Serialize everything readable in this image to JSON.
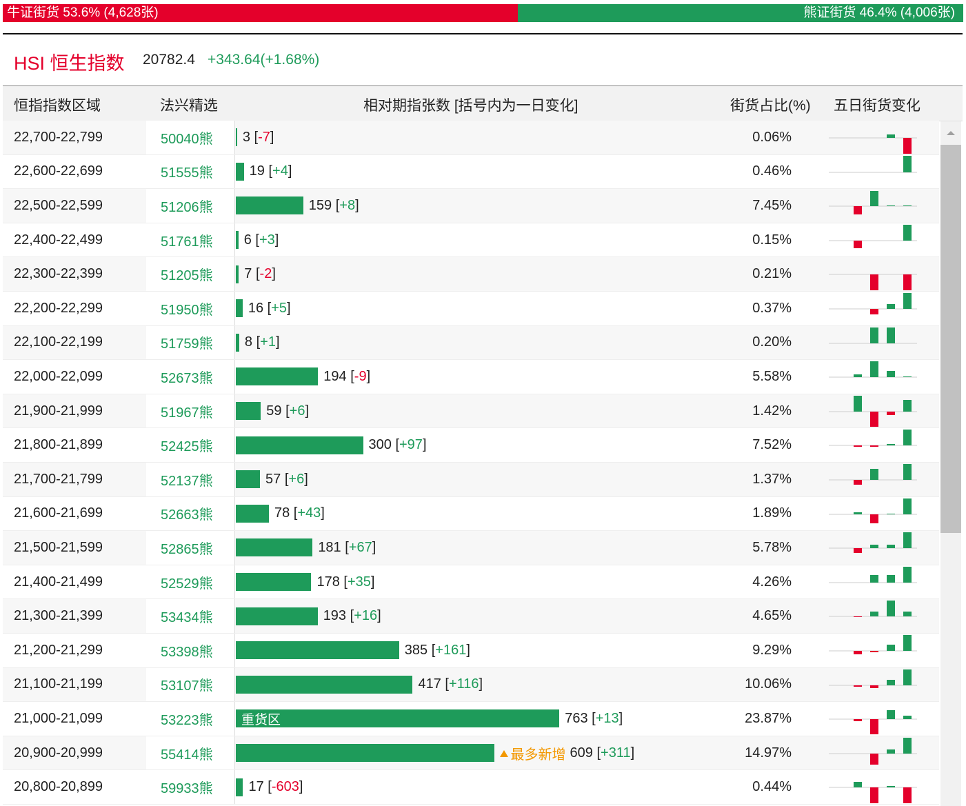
{
  "top_bar": {
    "bull": {
      "text": "牛证街货 53.6% (4,628张)",
      "share": 53.6
    },
    "bear": {
      "text": "熊证街货 46.4% (4,006张)",
      "share": 46.4
    }
  },
  "header": {
    "title": "HSI 恒生指数",
    "price": "20782.4",
    "change": "+343.64(+1.68%)"
  },
  "table": {
    "columns": [
      "恒指指数区域",
      "法兴精选",
      "相对期指张数 [括号内为一日变化]",
      "街货占比(%)",
      "五日街货变化"
    ],
    "rows": [
      {
        "range": "22,700-22,799",
        "code": "50040熊",
        "count": 3,
        "change": "-7",
        "share": "0.06%",
        "five_day": [
          0,
          0,
          5,
          -23
        ]
      },
      {
        "range": "22,600-22,699",
        "code": "51555熊",
        "count": 19,
        "change": "+4",
        "share": "0.46%",
        "five_day": [
          0,
          0,
          0,
          24
        ]
      },
      {
        "range": "22,500-22,599",
        "code": "51206熊",
        "count": 159,
        "change": "+8",
        "share": "7.45%",
        "five_day": [
          -12,
          22,
          1,
          1
        ]
      },
      {
        "range": "22,400-22,499",
        "code": "51761熊",
        "count": 6,
        "change": "+3",
        "share": "0.15%",
        "five_day": [
          -11,
          0,
          0,
          23
        ]
      },
      {
        "range": "22,300-22,399",
        "code": "51205熊",
        "count": 7,
        "change": "-2",
        "share": "0.21%",
        "five_day": [
          0,
          -23,
          0,
          -23
        ]
      },
      {
        "range": "22,200-22,299",
        "code": "51950熊",
        "count": 16,
        "change": "+5",
        "share": "0.37%",
        "five_day": [
          0,
          -8,
          7,
          23
        ]
      },
      {
        "range": "22,100-22,199",
        "code": "51759熊",
        "count": 8,
        "change": "+1",
        "share": "0.20%",
        "five_day": [
          0,
          23,
          23,
          0
        ]
      },
      {
        "range": "22,000-22,099",
        "code": "52673熊",
        "count": 194,
        "change": "-9",
        "share": "5.58%",
        "five_day": [
          4,
          23,
          9,
          1
        ]
      },
      {
        "range": "21,900-21,999",
        "code": "51967熊",
        "count": 59,
        "change": "+6",
        "share": "1.42%",
        "five_day": [
          23,
          -22,
          -5,
          17
        ]
      },
      {
        "range": "21,800-21,899",
        "code": "52425熊",
        "count": 300,
        "change": "+97",
        "share": "7.52%",
        "five_day": [
          -2,
          -2,
          2,
          23
        ]
      },
      {
        "range": "21,700-21,799",
        "code": "52137熊",
        "count": 57,
        "change": "+6",
        "share": "1.37%",
        "five_day": [
          -7,
          16,
          0,
          23
        ]
      },
      {
        "range": "21,600-21,699",
        "code": "52663熊",
        "count": 78,
        "change": "+43",
        "share": "1.89%",
        "five_day": [
          3,
          -13,
          1,
          23
        ]
      },
      {
        "range": "21,500-21,599",
        "code": "52865熊",
        "count": 181,
        "change": "+67",
        "share": "5.78%",
        "five_day": [
          -7,
          5,
          5,
          23
        ]
      },
      {
        "range": "21,400-21,499",
        "code": "52529熊",
        "count": 178,
        "change": "+35",
        "share": "4.26%",
        "five_day": [
          0,
          11,
          11,
          23
        ]
      },
      {
        "range": "21,300-21,399",
        "code": "53434熊",
        "count": 193,
        "change": "+16",
        "share": "4.65%",
        "five_day": [
          -1,
          7,
          23,
          7
        ]
      },
      {
        "range": "21,200-21,299",
        "code": "53398熊",
        "count": 385,
        "change": "+161",
        "share": "9.29%",
        "five_day": [
          -5,
          -2,
          9,
          23
        ]
      },
      {
        "range": "21,100-21,199",
        "code": "53107熊",
        "count": 417,
        "change": "+116",
        "share": "10.06%",
        "five_day": [
          -2,
          -4,
          8,
          23
        ]
      },
      {
        "range": "21,000-21,099",
        "code": "53223熊",
        "count": 763,
        "change": "+13",
        "share": "23.87%",
        "bar_tag": "重货区",
        "five_day": [
          -3,
          -22,
          13,
          5
        ]
      },
      {
        "range": "20,900-20,999",
        "code": "55414熊",
        "count": 609,
        "change": "+311",
        "share": "14.97%",
        "tag": "最多新增",
        "five_day": [
          0,
          -16,
          6,
          23
        ]
      },
      {
        "range": "20,800-20,899",
        "code": "59933熊",
        "count": 17,
        "change": "-603",
        "share": "0.44%",
        "five_day": [
          8,
          -23,
          2,
          -23
        ]
      }
    ]
  }
}
